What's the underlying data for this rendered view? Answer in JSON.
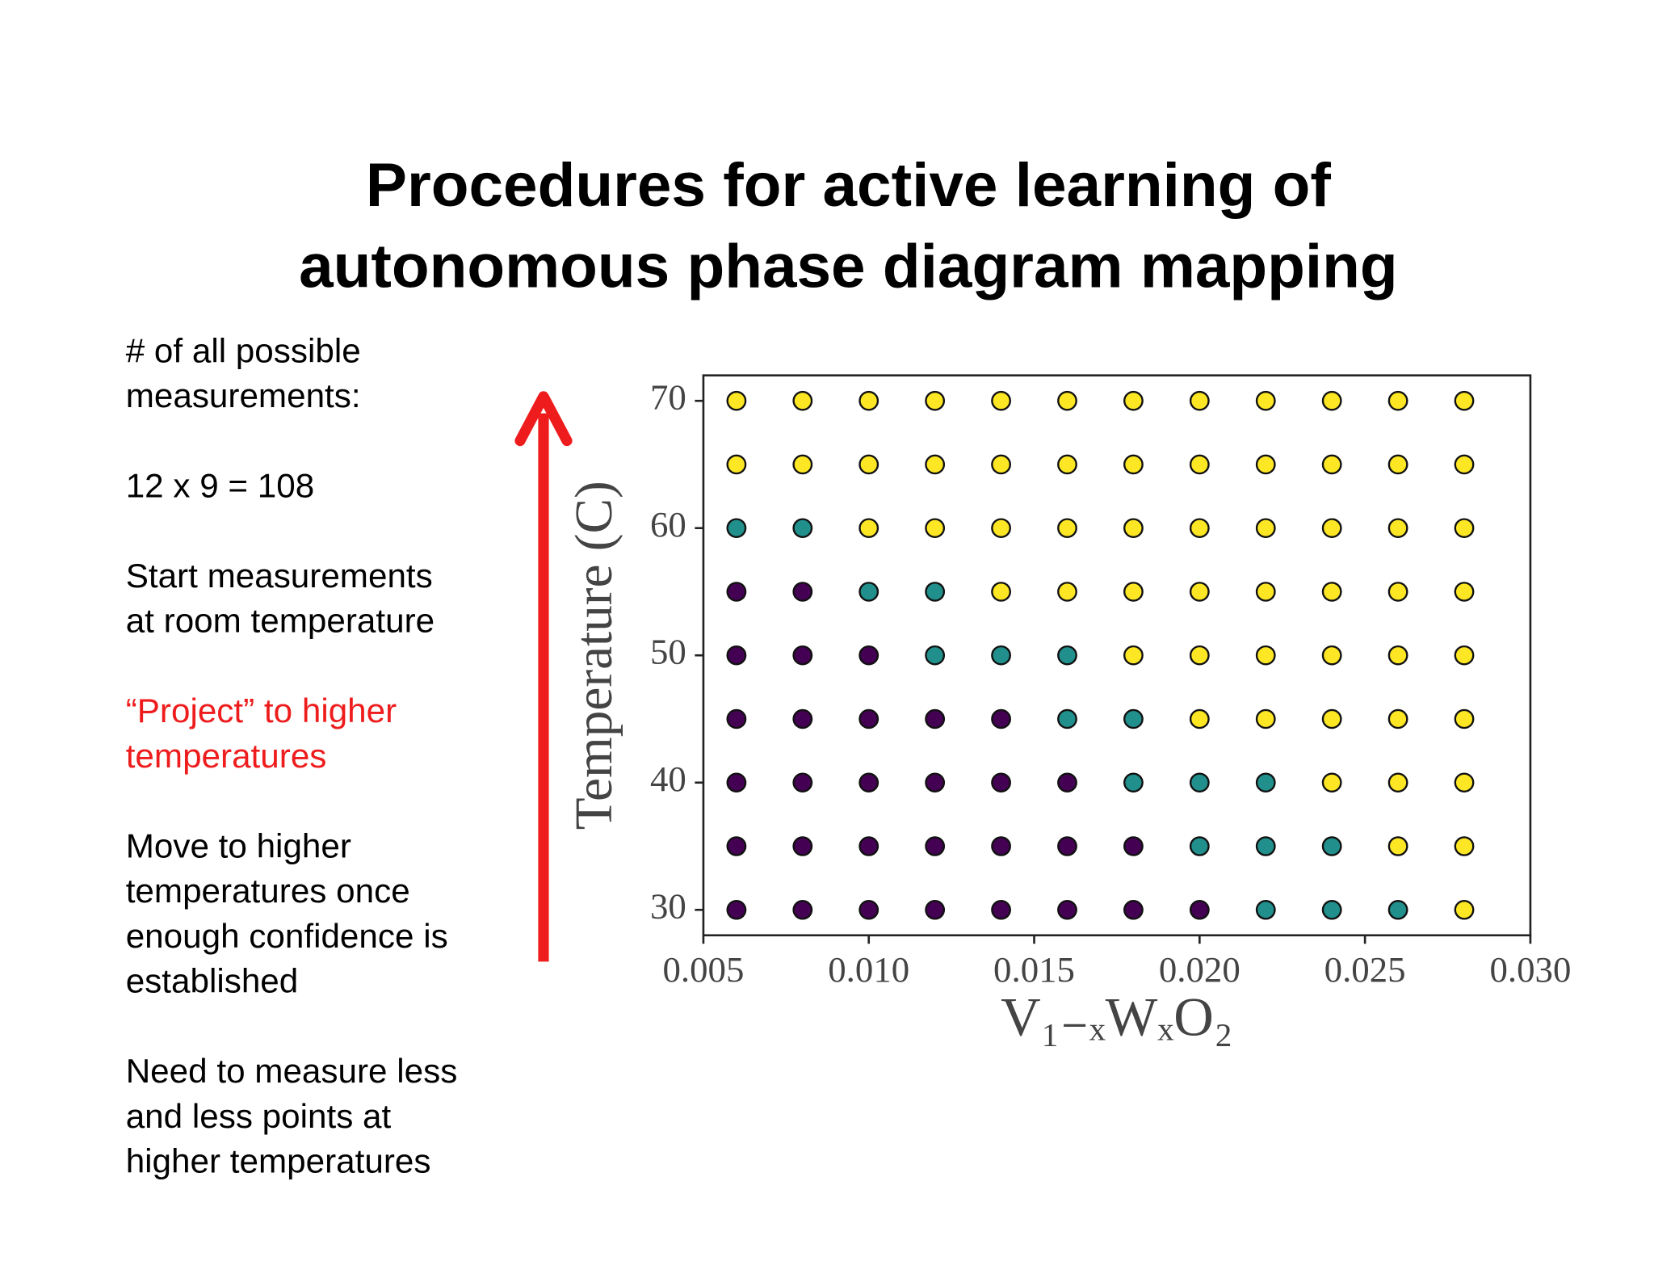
{
  "title": [
    "Procedures for active learning of",
    "autonomous  phase diagram mapping"
  ],
  "notes": [
    {
      "lines": [
        "# of all possible",
        "measurements:"
      ]
    },
    {
      "lines": [
        "12 x 9  = 108"
      ]
    },
    {
      "lines": [
        "Start measurements",
        "at room temperature"
      ]
    },
    {
      "lines": [
        "“Project” to higher",
        "temperatures"
      ],
      "color": "#ee1c1c"
    },
    {
      "lines": [
        "Move to higher",
        "temperatures once",
        "enough confidence is",
        "established"
      ]
    },
    {
      "lines": [
        "Need to measure less",
        "and less points at",
        "higher temperatures"
      ]
    }
  ],
  "chart_data": {
    "type": "scatter",
    "x_label": "V₁₋ₓWₓO₂",
    "y_label": "Temperature (C)",
    "xlim": [
      0.005,
      0.03
    ],
    "ylim": [
      28,
      72
    ],
    "xticks": [
      0.005,
      {
        "value": 0.01,
        "label": "0.010"
      },
      0.015,
      {
        "value": 0.02,
        "label": "0.020"
      },
      0.025,
      {
        "value": 0.03,
        "label": "0.030"
      }
    ],
    "yticks": [
      30,
      40,
      50,
      60,
      70
    ],
    "series": [
      {
        "color": "#440154",
        "x": [
          0.006,
          0.008,
          0.006,
          0.008,
          0.01,
          0.006,
          0.008,
          0.01,
          0.012,
          0.014,
          0.006,
          0.008,
          0.01,
          0.012,
          0.014,
          0.016,
          0.006,
          0.008,
          0.01,
          0.012,
          0.014,
          0.016,
          0.018,
          0.006,
          0.008,
          0.01,
          0.012,
          0.014,
          0.016,
          0.018,
          0.02
        ],
        "values": [
          55,
          55,
          50,
          50,
          50,
          45,
          45,
          45,
          45,
          45,
          40,
          40,
          40,
          40,
          40,
          40,
          35,
          35,
          35,
          35,
          35,
          35,
          35,
          30,
          30,
          30,
          30,
          30,
          30,
          30,
          30
        ]
      },
      {
        "color": "#21908d",
        "x": [
          0.006,
          0.008,
          0.01,
          0.012,
          0.012,
          0.014,
          0.016,
          0.016,
          0.018,
          0.018,
          0.02,
          0.022,
          0.02,
          0.022,
          0.024,
          0.022,
          0.024,
          0.026
        ],
        "values": [
          60,
          60,
          55,
          55,
          50,
          50,
          50,
          45,
          45,
          40,
          40,
          40,
          35,
          35,
          35,
          30,
          30,
          30
        ]
      },
      {
        "color": "#fde725",
        "x": [
          0.006,
          0.008,
          0.01,
          0.012,
          0.014,
          0.016,
          0.018,
          0.02,
          0.022,
          0.024,
          0.026,
          0.028,
          0.006,
          0.008,
          0.01,
          0.012,
          0.014,
          0.016,
          0.018,
          0.02,
          0.022,
          0.024,
          0.026,
          0.028,
          0.01,
          0.012,
          0.014,
          0.016,
          0.018,
          0.02,
          0.022,
          0.024,
          0.026,
          0.028,
          0.014,
          0.016,
          0.018,
          0.02,
          0.022,
          0.024,
          0.026,
          0.028,
          0.018,
          0.02,
          0.022,
          0.024,
          0.026,
          0.028,
          0.02,
          0.022,
          0.024,
          0.026,
          0.028,
          0.024,
          0.026,
          0.028,
          0.026,
          0.028,
          0.028
        ],
        "values": [
          70,
          70,
          70,
          70,
          70,
          70,
          70,
          70,
          70,
          70,
          70,
          70,
          65,
          65,
          65,
          65,
          65,
          65,
          65,
          65,
          65,
          65,
          65,
          65,
          60,
          60,
          60,
          60,
          60,
          60,
          60,
          60,
          60,
          60,
          55,
          55,
          55,
          55,
          55,
          55,
          55,
          55,
          50,
          50,
          50,
          50,
          50,
          50,
          45,
          45,
          45,
          45,
          45,
          40,
          40,
          40,
          35,
          35,
          30
        ]
      }
    ]
  }
}
